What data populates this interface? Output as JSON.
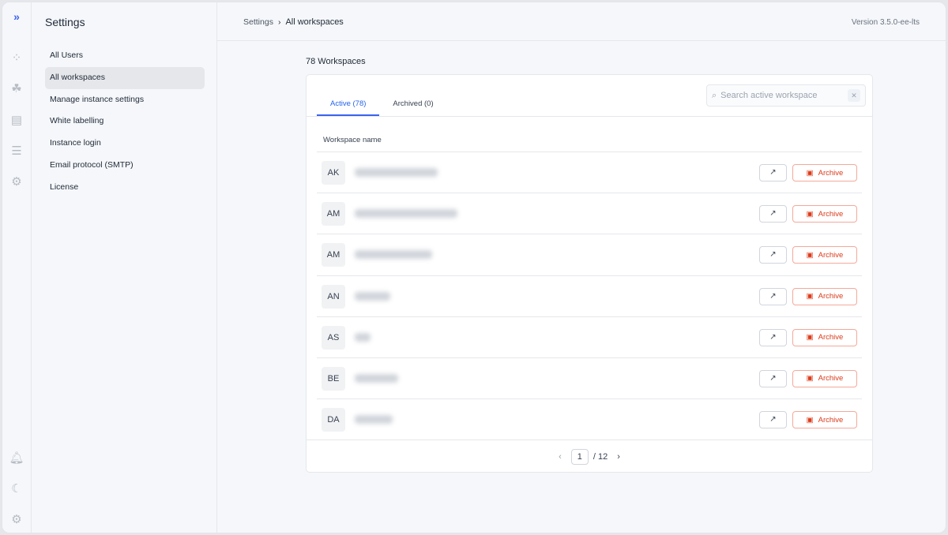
{
  "sidebar": {
    "title": "Settings",
    "items": [
      {
        "label": "All Users"
      },
      {
        "label": "All workspaces",
        "active": true
      },
      {
        "label": "Manage instance settings"
      },
      {
        "label": "White labelling"
      },
      {
        "label": "Instance login"
      },
      {
        "label": "Email protocol (SMTP)"
      },
      {
        "label": "License"
      }
    ]
  },
  "rail_icons": [
    "apps-icon",
    "components-icon",
    "table-icon",
    "database-icon",
    "workflow-icon",
    "bell-icon",
    "moon-icon",
    "gear-icon"
  ],
  "breadcrumb": {
    "root": "Settings",
    "current": "All workspaces"
  },
  "version": "Version 3.5.0-ee-lts",
  "workspace_count": "78 Workspaces",
  "tabs": [
    {
      "label": "Active (78)",
      "active": true
    },
    {
      "label": "Archived (0)"
    }
  ],
  "search": {
    "placeholder": "Search active workspace",
    "value": ""
  },
  "table": {
    "header": "Workspace name",
    "archive_label": "Archive",
    "rows": [
      {
        "initials": "AK"
      },
      {
        "initials": "AM"
      },
      {
        "initials": "AM"
      },
      {
        "initials": "AN"
      },
      {
        "initials": "AS"
      },
      {
        "initials": "BE"
      },
      {
        "initials": "DA"
      }
    ]
  },
  "pagination": {
    "current": "1",
    "total": "/ 12"
  },
  "colors": {
    "accent": "#3b63f0",
    "danger": "#dc3a1a"
  }
}
